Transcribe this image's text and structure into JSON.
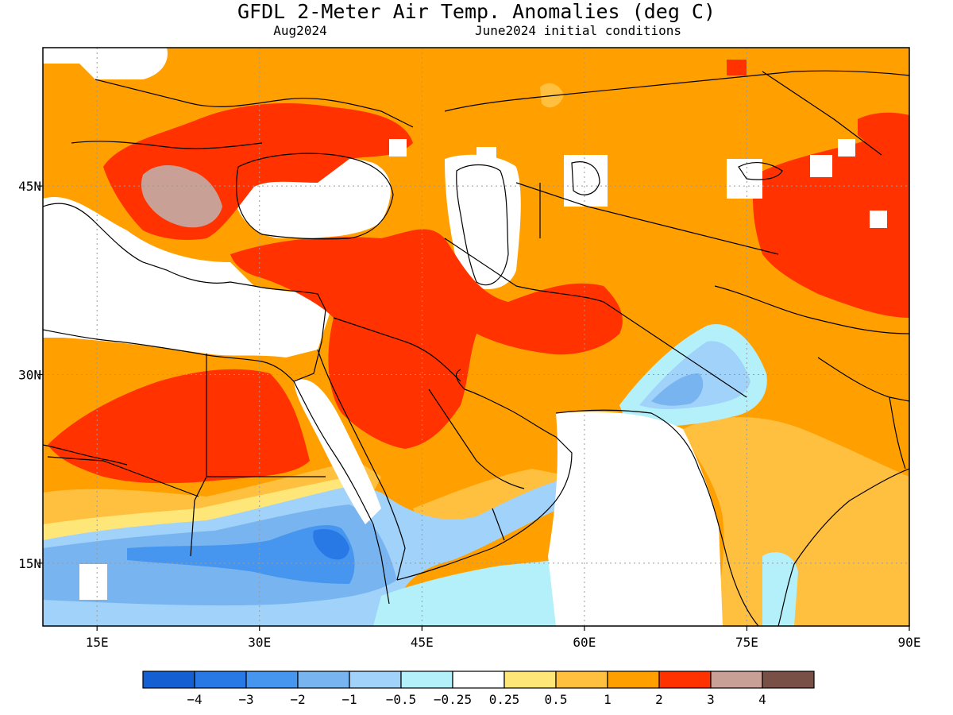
{
  "header": {
    "title": "GFDL 2-Meter Air Temp. Anomalies (deg C)",
    "valid_month": "Aug2024",
    "init": "June2024 initial conditions"
  },
  "map": {
    "lon_ticks": [
      {
        "lon": 15,
        "label": "15E"
      },
      {
        "lon": 30,
        "label": "30E"
      },
      {
        "lon": 45,
        "label": "45E"
      },
      {
        "lon": 60,
        "label": "60E"
      },
      {
        "lon": 75,
        "label": "75E"
      },
      {
        "lon": 90,
        "label": "90E"
      }
    ],
    "lat_ticks": [
      {
        "lat": 45,
        "label": "45N"
      },
      {
        "lat": 30,
        "label": "30N"
      },
      {
        "lat": 15,
        "label": "15N"
      }
    ],
    "lon_range": [
      10,
      90
    ],
    "lat_range": [
      10,
      56
    ]
  },
  "colorbar": {
    "colors": [
      "#1460d2",
      "#2878e6",
      "#4696f0",
      "#78b4f0",
      "#a0d2fa",
      "#b4f0fa",
      "#ffffff",
      "#ffe678",
      "#ffc040",
      "#ffa000",
      "#ff3200",
      "#c8a096",
      "#785046"
    ],
    "labels": [
      "−4",
      "−3",
      "−2",
      "−1",
      "−0.5",
      "−0.25",
      "0.25",
      "0.5",
      "1",
      "2",
      "3",
      "4"
    ]
  }
}
